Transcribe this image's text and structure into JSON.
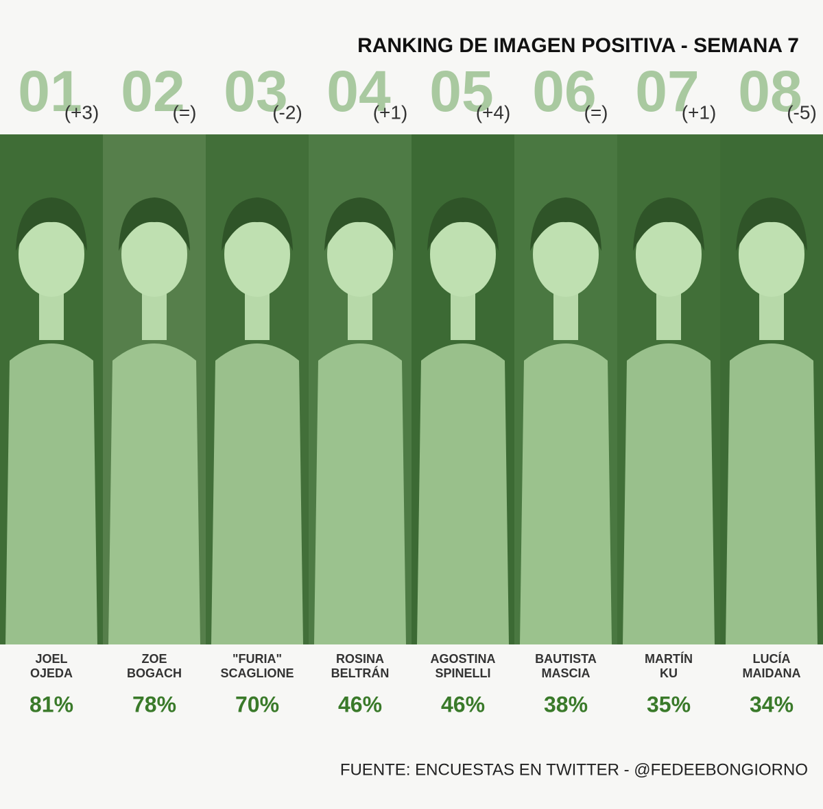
{
  "header": {
    "title": "RANKING DE IMAGEN POSITIVA - SEMANA 7"
  },
  "entries": [
    {
      "rank": "01",
      "change": "(+3)",
      "name": [
        "JOEL",
        "OJEDA"
      ],
      "percent": "81%"
    },
    {
      "rank": "02",
      "change": "(=)",
      "name": [
        "ZOE",
        "BOGACH"
      ],
      "percent": "78%"
    },
    {
      "rank": "03",
      "change": "(-2)",
      "name": [
        "\"FURIA\"",
        "SCAGLIONE"
      ],
      "percent": "70%"
    },
    {
      "rank": "04",
      "change": "(+1)",
      "name": [
        "ROSINA",
        "BELTRÁN"
      ],
      "percent": "46%"
    },
    {
      "rank": "05",
      "change": "(+4)",
      "name": [
        "AGOSTINA",
        "SPINELLI"
      ],
      "percent": "46%"
    },
    {
      "rank": "06",
      "change": "(=)",
      "name": [
        "BAUTISTA",
        "MASCIA"
      ],
      "percent": "38%"
    },
    {
      "rank": "07",
      "change": "(+1)",
      "name": [
        "MARTÍN",
        "KU"
      ],
      "percent": "35%"
    },
    {
      "rank": "08",
      "change": "(-5)",
      "name": [
        "LUCÍA",
        "MAIDANA"
      ],
      "percent": "34%"
    }
  ],
  "footer": {
    "source": "FUENTE: ENCUESTAS EN TWITTER - @FEDEEBONGIORNO"
  }
}
